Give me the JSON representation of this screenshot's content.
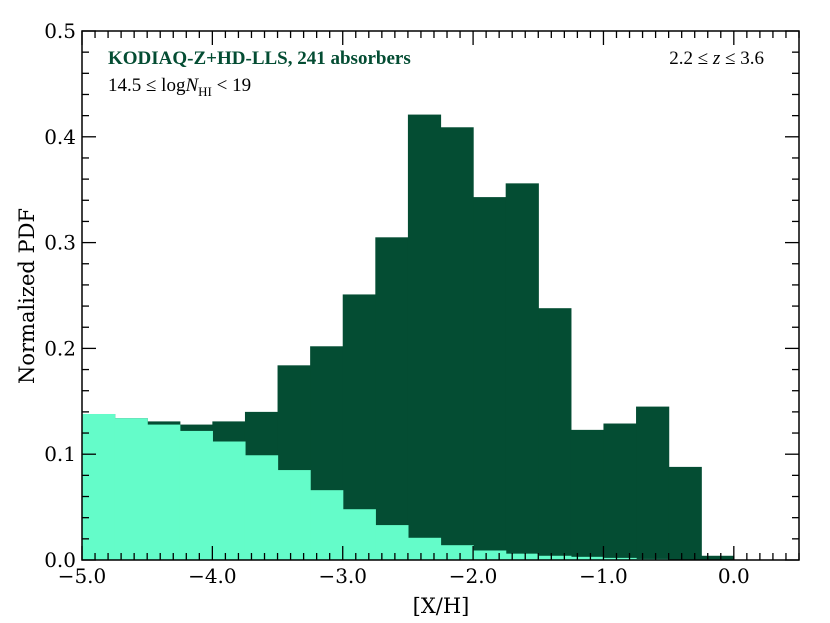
{
  "chart_data": {
    "type": "bar",
    "subtype": "histogram-overlay",
    "xlabel": "[X/H]",
    "ylabel": "Normalized PDF",
    "xlim": [
      -5.0,
      0.5
    ],
    "ylim": [
      0.0,
      0.5
    ],
    "xticks": [
      -5.0,
      -4.0,
      -3.0,
      -2.0,
      -1.0,
      0.0
    ],
    "xtick_labels": [
      "−5.0",
      "−4.0",
      "−3.0",
      "−2.0",
      "−1.0",
      "0.0"
    ],
    "yticks": [
      0.0,
      0.1,
      0.2,
      0.3,
      0.4,
      0.5
    ],
    "ytick_labels": [
      "0.0",
      "0.1",
      "0.2",
      "0.3",
      "0.4",
      "0.5"
    ],
    "grid": false,
    "bin_edges": [
      -5.0,
      -4.75,
      -4.5,
      -4.25,
      -4.0,
      -3.75,
      -3.5,
      -3.25,
      -3.0,
      -2.75,
      -2.5,
      -2.25,
      -2.0,
      -1.75,
      -1.5,
      -1.25,
      -1.0,
      -0.75,
      -0.5,
      -0.25,
      0.0
    ],
    "series": [
      {
        "color": "#044d33",
        "values": [
          0.138,
          0.134,
          0.131,
          0.128,
          0.131,
          0.14,
          0.184,
          0.202,
          0.251,
          0.305,
          0.421,
          0.409,
          0.343,
          0.356,
          0.238,
          0.123,
          0.129,
          0.145,
          0.088,
          0.004
        ]
      },
      {
        "color": "#64fcc9",
        "values": [
          0.138,
          0.134,
          0.128,
          0.122,
          0.112,
          0.099,
          0.085,
          0.066,
          0.048,
          0.033,
          0.021,
          0.014,
          0.009,
          0.006,
          0.004,
          0.003,
          0.002,
          0.001,
          0.0,
          0.0
        ]
      }
    ],
    "annotations": {
      "sample": "KODIAQ-Z+HD-LLS, 241 absorbers",
      "sample_color": "#044d33",
      "nhi_prefix": "14.5 ≤ log",
      "nhi_N": "N",
      "nhi_sub": "HI",
      "nhi_suffix": " < 19",
      "redshift_prefix": "2.2 ≤ ",
      "redshift_z": "z",
      "redshift_suffix": " ≤ 3.6"
    }
  }
}
